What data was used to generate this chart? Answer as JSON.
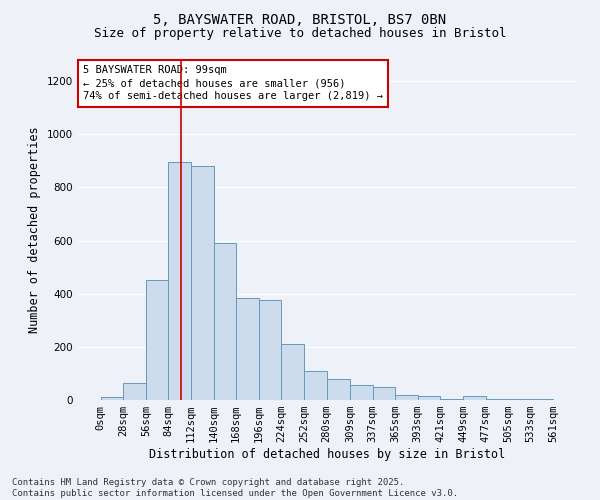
{
  "title1": "5, BAYSWATER ROAD, BRISTOL, BS7 0BN",
  "title2": "Size of property relative to detached houses in Bristol",
  "xlabel": "Distribution of detached houses by size in Bristol",
  "ylabel": "Number of detached properties",
  "annotation_line1": "5 BAYSWATER ROAD: 99sqm",
  "annotation_line2": "← 25% of detached houses are smaller (956)",
  "annotation_line3": "74% of semi-detached houses are larger (2,819) →",
  "footer1": "Contains HM Land Registry data © Crown copyright and database right 2025.",
  "footer2": "Contains public sector information licensed under the Open Government Licence v3.0.",
  "bar_edges": [
    0,
    28,
    56,
    84,
    112,
    140,
    168,
    196,
    224,
    252,
    280,
    309,
    337,
    365,
    393,
    421,
    449,
    477,
    505,
    533,
    561
  ],
  "bar_heights": [
    10,
    65,
    450,
    895,
    880,
    590,
    385,
    375,
    210,
    110,
    80,
    55,
    50,
    20,
    15,
    5,
    15,
    5,
    5,
    3
  ],
  "bar_color": "#ccdcec",
  "bar_edge_color": "#6699bb",
  "vline_x": 99,
  "vline_color": "#cc0000",
  "ylim": [
    0,
    1280
  ],
  "yticks": [
    0,
    200,
    400,
    600,
    800,
    1000,
    1200
  ],
  "bg_color": "#eef2f8",
  "grid_color": "#ffffff",
  "annotation_box_facecolor": "#ffffff",
  "annotation_box_edgecolor": "#cc0000",
  "title1_fontsize": 10,
  "title2_fontsize": 9,
  "xlabel_fontsize": 8.5,
  "ylabel_fontsize": 8.5,
  "tick_fontsize": 7.5,
  "annotation_fontsize": 7.5,
  "footer_fontsize": 6.5
}
